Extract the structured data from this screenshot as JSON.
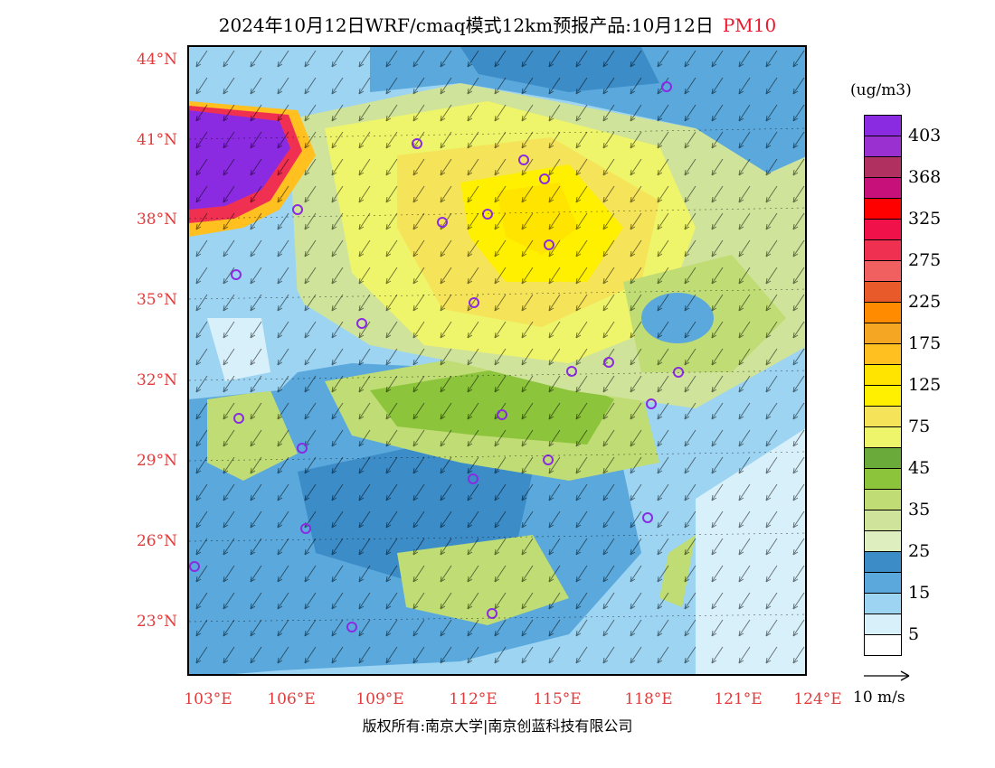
{
  "title": {
    "text": "2024年10月12日WRF/cmaq模式12km预报产品:10月12日",
    "pollutant": "PM10"
  },
  "axes": {
    "y_ticks": [
      "44°N",
      "41°N",
      "38°N",
      "35°N",
      "32°N",
      "29°N",
      "26°N",
      "23°N"
    ],
    "x_ticks": [
      "103°E",
      "106°E",
      "109°E",
      "112°E",
      "115°E",
      "118°E",
      "121°E",
      "124°E"
    ]
  },
  "legend": {
    "unit": "(ug/m3)",
    "levels": [
      {
        "label": "403",
        "color": "#8a2be2"
      },
      {
        "label": "",
        "color": "#9b30d0"
      },
      {
        "label": "368",
        "color": "#b03060"
      },
      {
        "label": "",
        "color": "#c8107a"
      },
      {
        "label": "325",
        "color": "#ff0000"
      },
      {
        "label": "",
        "color": "#f0104a"
      },
      {
        "label": "275",
        "color": "#f03050"
      },
      {
        "label": "",
        "color": "#f06060"
      },
      {
        "label": "225",
        "color": "#e85a2a"
      },
      {
        "label": "",
        "color": "#ff8c00"
      },
      {
        "label": "175",
        "color": "#f5a623"
      },
      {
        "label": "",
        "color": "#ffc020"
      },
      {
        "label": "125",
        "color": "#ffe400"
      },
      {
        "label": "",
        "color": "#fff000"
      },
      {
        "label": "75",
        "color": "#f5e35a"
      },
      {
        "label": "",
        "color": "#eef56a"
      },
      {
        "label": "45",
        "color": "#6aaa3a"
      },
      {
        "label": "",
        "color": "#8cc43c"
      },
      {
        "label": "35",
        "color": "#c0dc74"
      },
      {
        "label": "",
        "color": "#cfe39a"
      },
      {
        "label": "25",
        "color": "#dfeebe"
      },
      {
        "label": "",
        "color": "#3c8cc8"
      },
      {
        "label": "15",
        "color": "#5aa8dc"
      },
      {
        "label": "",
        "color": "#9dd4f2"
      },
      {
        "label": "5",
        "color": "#d8f0fa"
      },
      {
        "label": "",
        "color": "#ffffff"
      }
    ]
  },
  "wind_reference": "10 m/s",
  "copyright": "版权所有:南京大学|南京创蓝科技有限公司"
}
